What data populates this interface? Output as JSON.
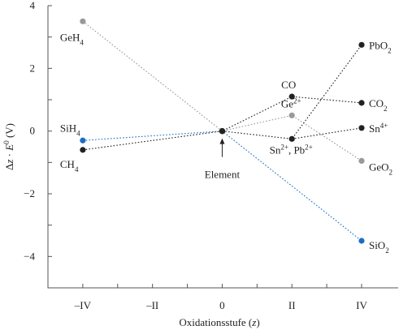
{
  "chart_data": {
    "type": "scatter",
    "title": "",
    "xlabel": "Oxidationsstufe (z)",
    "ylabel": "Δz · E0 (V)",
    "x_categories": [
      "–IV",
      "–II",
      "0",
      "II",
      "IV"
    ],
    "x_ticks": [
      -4,
      -3,
      -2,
      -1,
      0,
      1,
      2,
      3,
      4
    ],
    "xlim": [
      -5,
      5.05
    ],
    "ylim": [
      -5,
      4
    ],
    "y_ticks": [
      4,
      3,
      2,
      1,
      0,
      -1,
      -2,
      -3,
      -4,
      -5
    ],
    "y_tick_labels": [
      {
        "value": 4,
        "text": "4"
      },
      {
        "value": 2,
        "text": "2"
      },
      {
        "value": 0,
        "text": "0"
      },
      {
        "value": -2,
        "text": "−2"
      },
      {
        "value": -4,
        "text": "−4"
      }
    ],
    "grid": false,
    "colors": {
      "C": "#222222",
      "Si": "#1a6fc4",
      "Ge": "#999999",
      "SnPb": "#222222",
      "axis": "#555555"
    },
    "series": [
      {
        "key": "C",
        "color": "#222222",
        "points": [
          {
            "x": -4,
            "y": -0.6,
            "label": "CH4"
          },
          {
            "x": 0,
            "y": 0
          },
          {
            "x": 2,
            "y": 1.1,
            "label": "CO"
          },
          {
            "x": 4,
            "y": 0.9,
            "label": "CO2"
          }
        ]
      },
      {
        "key": "Si",
        "color": "#1a6fc4",
        "points": [
          {
            "x": -4,
            "y": -0.3,
            "label": "SiH4"
          },
          {
            "x": 0,
            "y": 0
          },
          {
            "x": 4,
            "y": -3.5,
            "label": "SiO2"
          }
        ]
      },
      {
        "key": "Ge",
        "color": "#999999",
        "points": [
          {
            "x": -4,
            "y": 3.5,
            "label": "GeH4"
          },
          {
            "x": 0,
            "y": 0
          },
          {
            "x": 2,
            "y": 0.5,
            "label": "Ge2+"
          },
          {
            "x": 4,
            "y": -0.95,
            "label": "GeO2"
          }
        ]
      },
      {
        "key": "SnPb1",
        "color": "#222222",
        "points": [
          {
            "x": 0,
            "y": 0
          },
          {
            "x": 2,
            "y": -0.25,
            "label": "Sn2+, Pb2+"
          },
          {
            "x": 4,
            "y": 2.75,
            "label": "PbO2"
          }
        ]
      },
      {
        "key": "SnPb2",
        "color": "#222222",
        "points": [
          {
            "x": 2,
            "y": -0.25
          },
          {
            "x": 4,
            "y": 0.1,
            "label": "Sn4+"
          }
        ]
      }
    ],
    "annotation": {
      "text": "Element",
      "x": 0,
      "y": 0
    }
  }
}
